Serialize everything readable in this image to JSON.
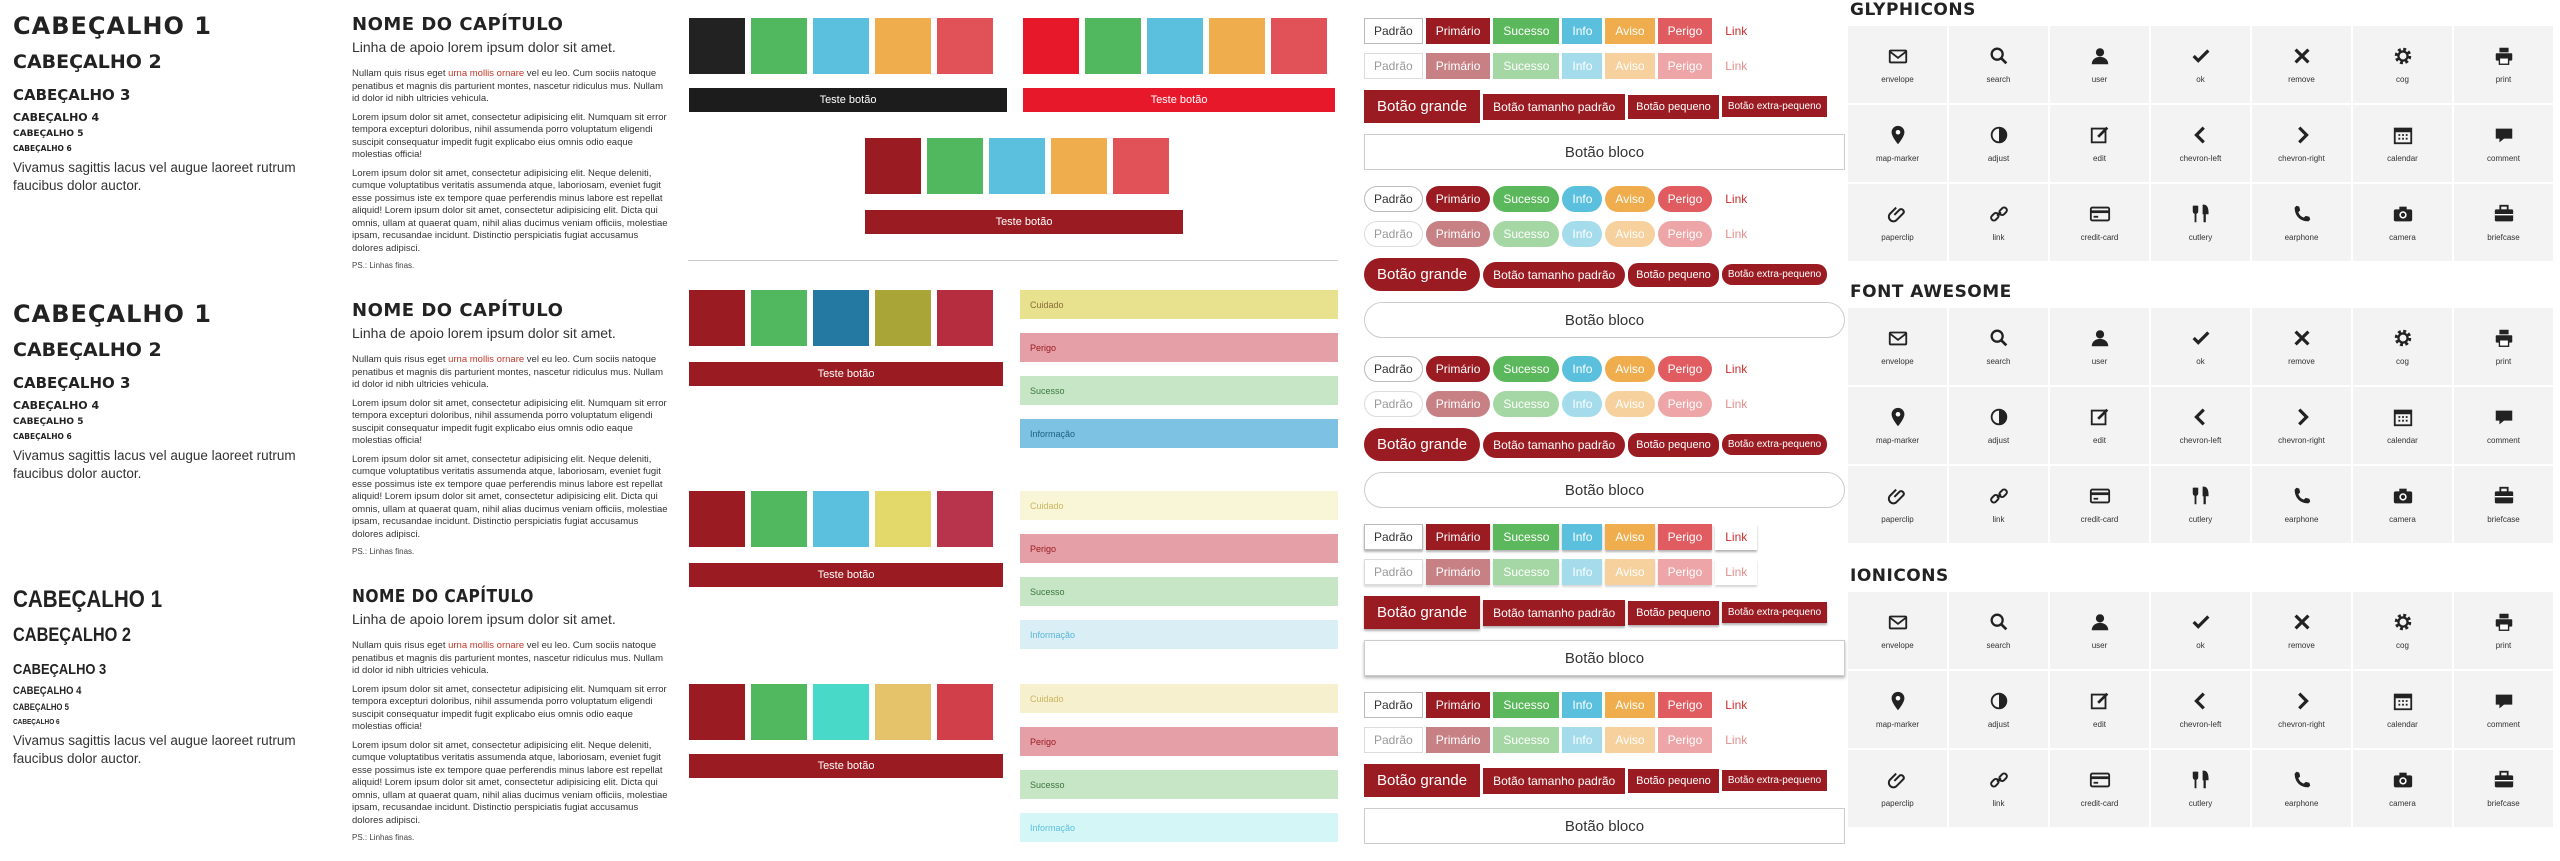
{
  "typography": {
    "h1": "CABEÇALHO 1",
    "h2": "CABEÇALHO 2",
    "h3": "CABEÇALHO 3",
    "h4": "CABEÇALHO 4",
    "h5": "CABEÇALHO 5",
    "h6": "CABEÇALHO 6",
    "body": "Vivamus sagittis lacus vel augue laoreet rutrum faucibus dolor auctor."
  },
  "chapter": {
    "title": "NOME DO CAPÍTULO",
    "subtitle": "Linha de apoio lorem ipsum dolor sit amet.",
    "p1a": "Nullam quis risus eget ",
    "p1link": "urna mollis ornare",
    "p1b": " vel eu leo. Cum sociis natoque penatibus et magnis dis parturient montes, nascetur ridiculus mus. Nullam id dolor id nibh ultricies vehicula.",
    "p2": "Lorem ipsum dolor sit amet, consectetur adipisicing elit. Numquam sit error tempora excepturi doloribus, nihil assumenda porro voluptatum eligendi suscipit consequatur impedit fugit explicabo eius omnis odio eaque molestias officia!",
    "p3": "Lorem ipsum dolor sit amet, consectetur adipisicing elit. Neque deleniti, cumque voluptatibus veritatis assumenda atque, laboriosam, eveniet fugit esse possimus iste ex tempore quae perferendis minus labore est repellat aliquid! Lorem ipsum dolor sit amet, consectetur adipisicing elit. Dicta qui omnis, ullam at quaerat quam, nihil alias ducimus veniam officiis, molestiae ipsam, recusandae incidunt. Distinctio perspiciatis fugiat accusamus dolores adipisci.",
    "ps": "PS.: Linhas finas."
  },
  "swatches": {
    "bar_label": "Teste botão",
    "set1": [
      "#222222",
      "#52b860",
      "#5bc0de",
      "#f0ad4e",
      "#e05257"
    ],
    "set2": [
      "#e8182b",
      "#52b860",
      "#5bc0de",
      "#f0ad4e",
      "#e05257"
    ],
    "set3": [
      "#9b1b22",
      "#52b860",
      "#5bc0de",
      "#f0ad4e",
      "#e05257"
    ],
    "set4": [
      "#9b1b22",
      "#52b860",
      "#2479a2",
      "#a9a537",
      "#b52d3e"
    ],
    "set5": [
      "#9b1b22",
      "#52b860",
      "#5bc0de",
      "#e2d96a",
      "#b8344d"
    ],
    "set6": [
      "#9b1b22",
      "#52b860",
      "#49d9c8",
      "#e4c36a",
      "#d03f4a"
    ]
  },
  "alerts": {
    "cuidado": "Cuidado",
    "perigo": "Perigo",
    "sucesso": "Sucesso",
    "info": "Informação"
  },
  "buttons": {
    "padrao": "Padrão",
    "primario": "Primário",
    "sucesso": "Sucesso",
    "info": "Info",
    "aviso": "Aviso",
    "perigo": "Perigo",
    "link": "Link",
    "grande": "Botão grande",
    "padrao_tam": "Botão tamanho padrão",
    "pequeno": "Botão pequeno",
    "extra": "Botão extra-pequeno",
    "bloco": "Botão bloco"
  },
  "icons": {
    "glyph_title": "GLYPHICONS",
    "fa_title": "FONT AWESOME",
    "ion_title": "IONICONS",
    "names": [
      "envelope",
      "search",
      "user",
      "ok",
      "remove",
      "cog",
      "print",
      "map-marker",
      "adjust",
      "edit",
      "chevron-left",
      "chevron-right",
      "calendar",
      "comment",
      "paperclip",
      "link",
      "credit-card",
      "cutlery",
      "earphone",
      "camera",
      "briefcase"
    ]
  }
}
